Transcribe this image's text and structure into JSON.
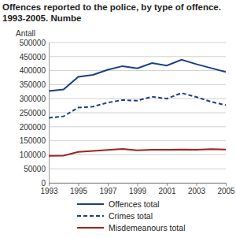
{
  "chart_data": {
    "type": "line",
    "title": "Offences reported to the police, by type of offence. 1993-2005. Numbe",
    "y_label": "Antall",
    "x": [
      1993,
      1994,
      1995,
      1996,
      1997,
      1998,
      1999,
      2000,
      2001,
      2002,
      2003,
      2004,
      2005
    ],
    "xlim": [
      1993,
      2005
    ],
    "xticks": [
      1993,
      1995,
      1997,
      1999,
      2001,
      2003,
      2005
    ],
    "ylim": [
      0,
      500000
    ],
    "yticks": [
      0,
      50000,
      100000,
      150000,
      200000,
      250000,
      300000,
      350000,
      400000,
      450000,
      500000
    ],
    "grid": true,
    "legend": "bottom",
    "series": [
      {
        "name": "Offences total",
        "color": "#1a3f86",
        "line_style": "solid",
        "values": [
          327000,
          333000,
          378000,
          385000,
          403000,
          416000,
          408000,
          427000,
          418000,
          439000,
          423000,
          409000,
          395000
        ]
      },
      {
        "name": "Crimes total",
        "color": "#1a3f86",
        "line_style": "dashed",
        "values": [
          232000,
          237000,
          268000,
          272000,
          286000,
          295000,
          293000,
          307000,
          300000,
          320000,
          306000,
          289000,
          277000
        ]
      },
      {
        "name": "Misdemeanours total",
        "color": "#a3211c",
        "line_style": "solid",
        "values": [
          96000,
          97000,
          110000,
          114000,
          117000,
          121000,
          116000,
          118000,
          118000,
          119000,
          118000,
          120000,
          119000
        ]
      }
    ]
  }
}
